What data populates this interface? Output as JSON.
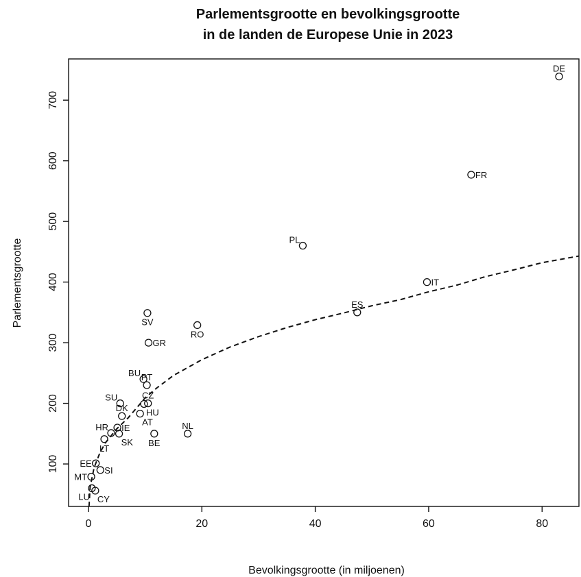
{
  "chart_data": {
    "type": "scatter",
    "title": [
      "Parlementsgrootte en bevolkingsgrootte",
      "in de landen de Europese Unie in 2023"
    ],
    "xlabel": "Bevolkingsgrootte (in miljoenen)",
    "ylabel": "Parlementsgrootte",
    "xlim": [
      -3.5,
      86.5
    ],
    "ylim": [
      30,
      768
    ],
    "xticks": [
      0,
      20,
      40,
      60,
      80
    ],
    "yticks": [
      100,
      200,
      300,
      400,
      500,
      600,
      700
    ],
    "grid": false,
    "legend": "none",
    "points": [
      {
        "label": "DE",
        "x": 83.0,
        "y": 739,
        "label_pos": "top"
      },
      {
        "label": "FR",
        "x": 67.5,
        "y": 577,
        "label_pos": "right"
      },
      {
        "label": "PL",
        "x": 37.8,
        "y": 460,
        "label_pos": "topleft"
      },
      {
        "label": "IT",
        "x": 59.7,
        "y": 400,
        "label_pos": "right"
      },
      {
        "label": "ES",
        "x": 47.4,
        "y": 350,
        "label_pos": "top"
      },
      {
        "label": "RO",
        "x": 19.2,
        "y": 329,
        "label_pos": "below"
      },
      {
        "label": "NL",
        "x": 17.5,
        "y": 150,
        "label_pos": "top"
      },
      {
        "label": "SV",
        "x": 10.4,
        "y": 349,
        "label_pos": "below"
      },
      {
        "label": "GR",
        "x": 10.6,
        "y": 300,
        "label_pos": "right"
      },
      {
        "label": "PT",
        "x": 10.3,
        "y": 230,
        "label_pos": "top"
      },
      {
        "label": "BU",
        "x": 9.7,
        "y": 240,
        "label_pos": "topleft"
      },
      {
        "label": "CZ",
        "x": 10.5,
        "y": 200,
        "label_pos": "top"
      },
      {
        "label": "HU",
        "x": 9.8,
        "y": 199,
        "label_pos": "belowright"
      },
      {
        "label": "BE",
        "x": 11.6,
        "y": 150,
        "label_pos": "below"
      },
      {
        "label": "AT",
        "x": 9.1,
        "y": 183,
        "label_pos": "belowright"
      },
      {
        "label": "SU",
        "x": 5.6,
        "y": 200,
        "label_pos": "topleft"
      },
      {
        "label": "DK",
        "x": 5.9,
        "y": 179,
        "label_pos": "top"
      },
      {
        "label": "SK",
        "x": 5.4,
        "y": 150,
        "label_pos": "belowright"
      },
      {
        "label": "IE",
        "x": 5.1,
        "y": 160,
        "label_pos": "right"
      },
      {
        "label": "HR",
        "x": 4.0,
        "y": 151,
        "label_pos": "topleft"
      },
      {
        "label": "LT",
        "x": 2.8,
        "y": 141,
        "label_pos": "below"
      },
      {
        "label": "SI",
        "x": 2.1,
        "y": 90,
        "label_pos": "right"
      },
      {
        "label": "EE",
        "x": 1.3,
        "y": 101,
        "label_pos": "left"
      },
      {
        "label": "MT",
        "x": 0.5,
        "y": 79,
        "label_pos": "left"
      },
      {
        "label": "CY",
        "x": 1.2,
        "y": 56,
        "label_pos": "belowright"
      },
      {
        "label": "LU",
        "x": 0.6,
        "y": 60,
        "label_pos": "belowleft"
      }
    ],
    "trendline": {
      "style": "dashed",
      "points": [
        [
          0.1,
          30
        ],
        [
          0.3,
          62
        ],
        [
          1,
          94
        ],
        [
          2,
          118
        ],
        [
          3,
          135
        ],
        [
          5,
          158
        ],
        [
          7,
          176
        ],
        [
          10,
          209
        ],
        [
          12,
          225
        ],
        [
          15,
          246
        ],
        [
          20,
          272
        ],
        [
          25,
          293
        ],
        [
          30,
          310
        ],
        [
          35,
          325
        ],
        [
          40,
          338
        ],
        [
          45,
          349
        ],
        [
          50,
          361
        ],
        [
          55,
          371
        ],
        [
          60,
          384
        ],
        [
          65,
          395
        ],
        [
          70,
          409
        ],
        [
          75,
          420
        ],
        [
          80,
          432
        ],
        [
          86.5,
          443
        ]
      ]
    }
  }
}
